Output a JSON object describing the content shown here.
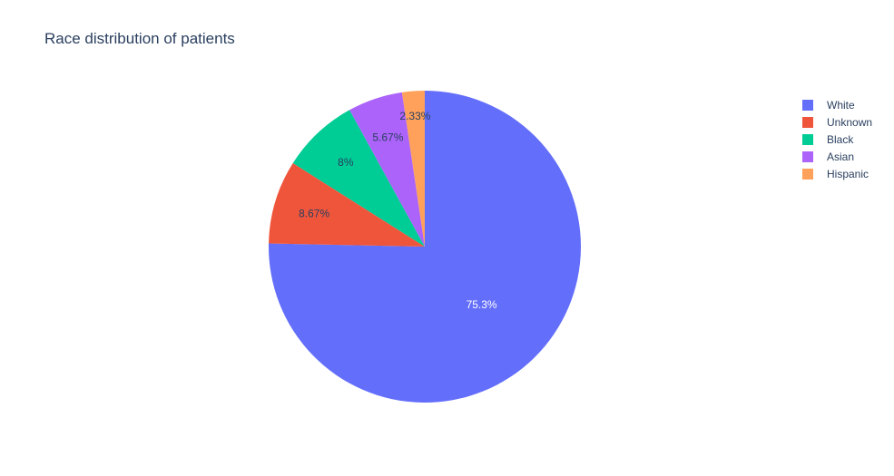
{
  "chart_data": {
    "type": "pie",
    "title": "Race distribution of patients",
    "slices": [
      {
        "label": "White",
        "value": 75.3,
        "text": "75.3%",
        "color": "#636efa",
        "text_color": "#ffffff"
      },
      {
        "label": "Unknown",
        "value": 8.67,
        "text": "8.67%",
        "color": "#ef553b",
        "text_color": "#2a3f5f"
      },
      {
        "label": "Black",
        "value": 8,
        "text": "8%",
        "color": "#00cc96",
        "text_color": "#2a3f5f"
      },
      {
        "label": "Asian",
        "value": 5.67,
        "text": "5.67%",
        "color": "#ab63fa",
        "text_color": "#2a3f5f"
      },
      {
        "label": "Hispanic",
        "value": 2.33,
        "text": "2.33%",
        "color": "#ffa15a",
        "text_color": "#2a3f5f"
      }
    ],
    "direction": "clockwise",
    "start": "12 o'clock",
    "legend_position": "right"
  }
}
